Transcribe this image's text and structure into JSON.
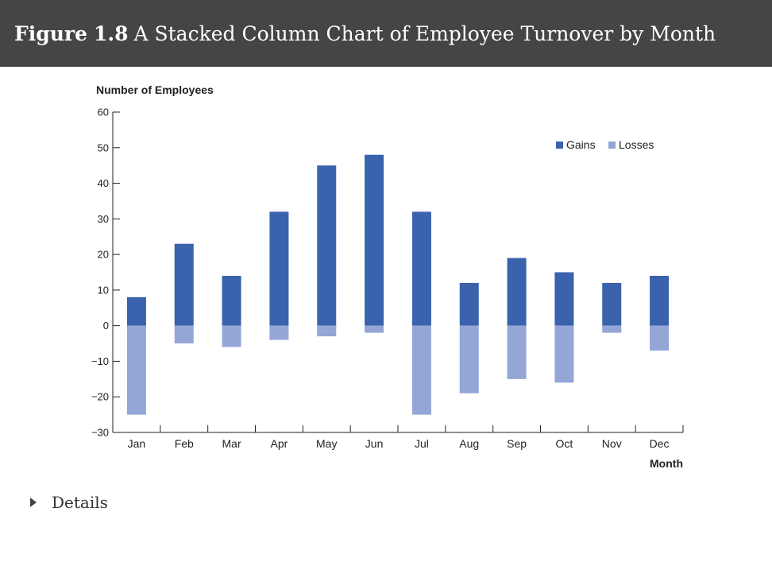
{
  "figure": {
    "label": "Figure",
    "number": "1.8",
    "title": "A Stacked Column Chart of Employee Turnover by Month"
  },
  "details": {
    "label": "Details"
  },
  "chart_data": {
    "type": "bar",
    "stacked": true,
    "title": "",
    "ylabel": "Number of Employees",
    "xlabel": "Month",
    "categories": [
      "Jan",
      "Feb",
      "Mar",
      "Apr",
      "May",
      "Jun",
      "Jul",
      "Aug",
      "Sep",
      "Oct",
      "Nov",
      "Dec"
    ],
    "series": [
      {
        "name": "Gains",
        "color": "#3a62ad",
        "values": [
          8,
          23,
          14,
          32,
          45,
          48,
          32,
          12,
          19,
          15,
          12,
          14
        ]
      },
      {
        "name": "Losses",
        "color": "#94a6d6",
        "values": [
          -25,
          -5,
          -6,
          -4,
          -3,
          -2,
          -25,
          -19,
          -15,
          -16,
          -2,
          -7
        ]
      }
    ],
    "ylim": [
      -30,
      60
    ],
    "yticks": [
      60,
      50,
      40,
      30,
      20,
      10,
      0,
      -10,
      -20,
      -30
    ],
    "grid": false,
    "legend_position": "top-right"
  }
}
